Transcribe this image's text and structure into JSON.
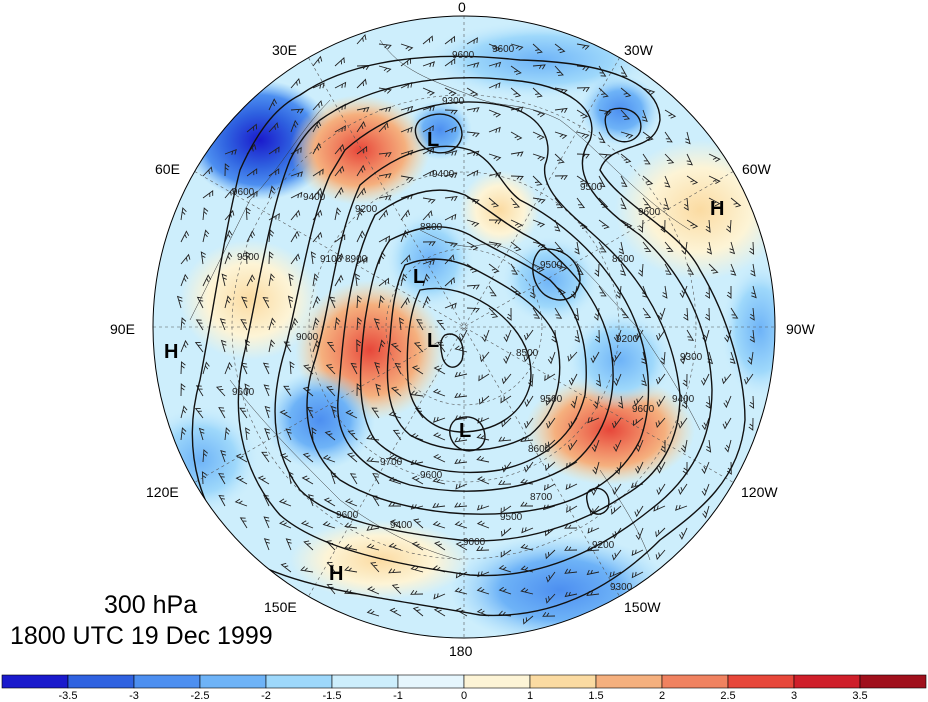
{
  "title": {
    "level": "300 hPa",
    "time": "1800 UTC 19 Dec 1999"
  },
  "longitude_labels": [
    {
      "id": "lon-0",
      "text": "0"
    },
    {
      "id": "lon-30w",
      "text": "30W"
    },
    {
      "id": "lon-60w",
      "text": "60W"
    },
    {
      "id": "lon-90w",
      "text": "90W"
    },
    {
      "id": "lon-120w",
      "text": "120W"
    },
    {
      "id": "lon-150w",
      "text": "150W"
    },
    {
      "id": "lon-180",
      "text": "180"
    },
    {
      "id": "lon-150e",
      "text": "150E"
    },
    {
      "id": "lon-120e",
      "text": "120E"
    },
    {
      "id": "lon-90e",
      "text": "90E"
    },
    {
      "id": "lon-60e",
      "text": "60E"
    },
    {
      "id": "lon-30e",
      "text": "30E"
    }
  ],
  "pressure_centers": [
    {
      "type": "H",
      "near": "90E"
    },
    {
      "type": "H",
      "near": "60W"
    },
    {
      "type": "H",
      "near": "150E"
    },
    {
      "type": "L",
      "near": "30E"
    },
    {
      "type": "L",
      "near": "70E"
    },
    {
      "type": "L",
      "near": "pole"
    },
    {
      "type": "L",
      "near": "170W"
    }
  ],
  "contour_labels": [
    "9600",
    "9600",
    "9300",
    "9400",
    "9200",
    "9500",
    "9600",
    "9400",
    "9100",
    "8900",
    "9000",
    "8800",
    "8600",
    "8500",
    "9200",
    "9300",
    "9400",
    "9500",
    "9600",
    "9700",
    "8600",
    "8700",
    "9000",
    "9500",
    "9600",
    "9400",
    "9200",
    "9300",
    "9600",
    "9500",
    "9600",
    "9500",
    "9600"
  ],
  "colorbar": {
    "ticks": [
      "-3.5",
      "-3",
      "-2.5",
      "-2",
      "-1.5",
      "-1",
      "0",
      "1",
      "1.5",
      "2",
      "2.5",
      "3",
      "3.5"
    ],
    "colors": [
      "#1a1acc",
      "#2f62e0",
      "#4d8ff0",
      "#6eb3f7",
      "#9ed8fb",
      "#cdeefc",
      "#e6f6fd",
      "#fdf4d6",
      "#fbdba2",
      "#f5b07e",
      "#f08260",
      "#e7473a",
      "#cf1f2a",
      "#a0101c"
    ]
  }
}
